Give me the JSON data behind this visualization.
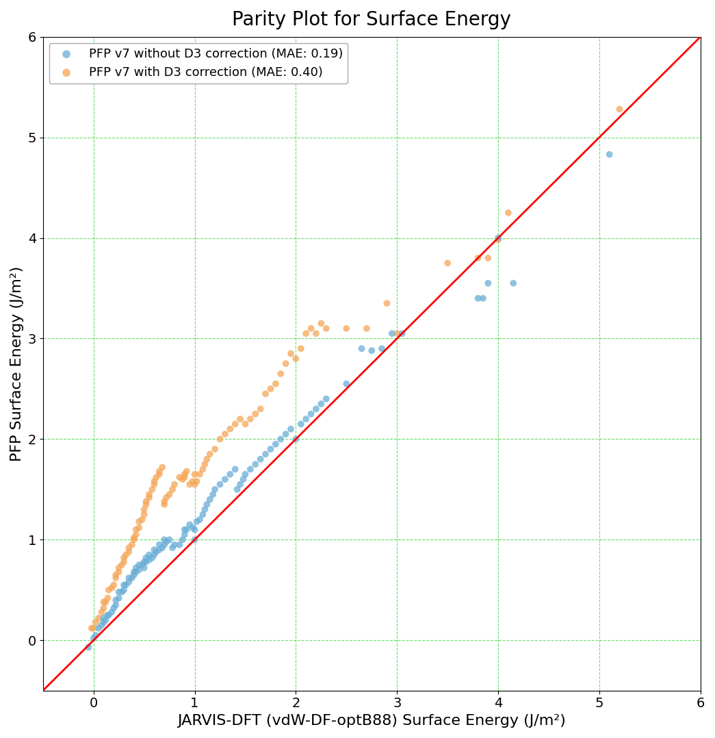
{
  "title": "Parity Plot for Surface Energy",
  "xlabel": "JARVIS-DFT (vdW-DF-optB88) Surface Energy (J/m²)",
  "ylabel": "PFP Surface Energy (J/m²)",
  "xlim": [
    -0.5,
    6.0
  ],
  "ylim": [
    -0.5,
    6.0
  ],
  "legend1_label": "PFP v7 without D3 correction (MAE: 0.19)",
  "legend2_label": "PFP v7 with D3 correction (MAE: 0.40)",
  "color_blue": "#6aaed6",
  "color_orange": "#f5a657",
  "grid_color": "#00cc00",
  "parity_color": "red",
  "marker_size": 50,
  "alpha": 0.75,
  "blue_x": [
    -0.05,
    0.0,
    0.02,
    0.05,
    0.08,
    0.1,
    0.1,
    0.12,
    0.14,
    0.15,
    0.18,
    0.2,
    0.22,
    0.22,
    0.25,
    0.25,
    0.28,
    0.3,
    0.3,
    0.32,
    0.35,
    0.35,
    0.38,
    0.4,
    0.4,
    0.42,
    0.42,
    0.45,
    0.45,
    0.48,
    0.5,
    0.5,
    0.52,
    0.52,
    0.55,
    0.55,
    0.58,
    0.6,
    0.6,
    0.62,
    0.65,
    0.65,
    0.68,
    0.7,
    0.7,
    0.72,
    0.75,
    0.78,
    0.8,
    0.85,
    0.88,
    0.9,
    0.9,
    0.92,
    0.95,
    0.98,
    1.0,
    1.0,
    1.02,
    1.05,
    1.08,
    1.1,
    1.12,
    1.15,
    1.18,
    1.2,
    1.25,
    1.3,
    1.35,
    1.4,
    1.42,
    1.45,
    1.48,
    1.5,
    1.55,
    1.6,
    1.65,
    1.7,
    1.75,
    1.8,
    1.85,
    1.9,
    1.95,
    2.0,
    2.05,
    2.1,
    2.15,
    2.2,
    2.25,
    2.3,
    2.5,
    2.65,
    2.75,
    2.85,
    2.95,
    3.05,
    3.8,
    3.85,
    3.9,
    4.0,
    4.15,
    5.1
  ],
  "blue_y": [
    -0.07,
    0.02,
    0.05,
    0.12,
    0.15,
    0.18,
    0.22,
    0.2,
    0.25,
    0.25,
    0.28,
    0.32,
    0.35,
    0.4,
    0.42,
    0.48,
    0.48,
    0.5,
    0.55,
    0.55,
    0.58,
    0.62,
    0.62,
    0.65,
    0.68,
    0.68,
    0.72,
    0.7,
    0.75,
    0.75,
    0.72,
    0.78,
    0.78,
    0.82,
    0.8,
    0.85,
    0.82,
    0.85,
    0.9,
    0.88,
    0.9,
    0.95,
    0.92,
    0.95,
    1.0,
    0.98,
    1.0,
    0.92,
    0.95,
    0.95,
    1.0,
    1.05,
    1.1,
    1.1,
    1.15,
    1.12,
    1.0,
    1.1,
    1.18,
    1.2,
    1.25,
    1.3,
    1.35,
    1.4,
    1.45,
    1.5,
    1.55,
    1.6,
    1.65,
    1.7,
    1.5,
    1.55,
    1.6,
    1.65,
    1.7,
    1.75,
    1.8,
    1.85,
    1.9,
    1.95,
    2.0,
    2.05,
    2.1,
    2.0,
    2.15,
    2.2,
    2.25,
    2.3,
    2.35,
    2.4,
    2.55,
    2.9,
    2.88,
    2.9,
    3.05,
    3.05,
    3.4,
    3.4,
    3.55,
    4.0,
    3.55,
    4.83
  ],
  "orange_x": [
    -0.02,
    0.0,
    0.02,
    0.05,
    0.08,
    0.1,
    0.1,
    0.12,
    0.14,
    0.15,
    0.18,
    0.2,
    0.22,
    0.22,
    0.25,
    0.25,
    0.28,
    0.3,
    0.3,
    0.32,
    0.35,
    0.35,
    0.38,
    0.4,
    0.4,
    0.42,
    0.42,
    0.45,
    0.45,
    0.48,
    0.5,
    0.5,
    0.52,
    0.52,
    0.55,
    0.55,
    0.58,
    0.6,
    0.6,
    0.62,
    0.65,
    0.65,
    0.68,
    0.7,
    0.7,
    0.72,
    0.75,
    0.78,
    0.8,
    0.85,
    0.88,
    0.9,
    0.9,
    0.92,
    0.95,
    0.98,
    1.0,
    1.0,
    1.02,
    1.05,
    1.08,
    1.1,
    1.12,
    1.15,
    1.2,
    1.25,
    1.3,
    1.35,
    1.4,
    1.45,
    1.5,
    1.55,
    1.6,
    1.65,
    1.7,
    1.75,
    1.8,
    1.85,
    1.9,
    1.95,
    2.0,
    2.05,
    2.1,
    2.15,
    2.2,
    2.25,
    2.3,
    2.5,
    2.7,
    2.9,
    3.0,
    3.5,
    3.8,
    3.9,
    4.0,
    4.1,
    5.2
  ],
  "orange_y": [
    0.12,
    0.12,
    0.18,
    0.22,
    0.28,
    0.32,
    0.38,
    0.38,
    0.42,
    0.5,
    0.52,
    0.55,
    0.62,
    0.65,
    0.68,
    0.72,
    0.75,
    0.78,
    0.82,
    0.85,
    0.88,
    0.92,
    0.95,
    1.0,
    1.02,
    1.05,
    1.1,
    1.12,
    1.18,
    1.2,
    1.25,
    1.3,
    1.35,
    1.38,
    1.42,
    1.45,
    1.5,
    1.55,
    1.58,
    1.62,
    1.65,
    1.68,
    1.72,
    1.35,
    1.38,
    1.42,
    1.45,
    1.5,
    1.55,
    1.62,
    1.6,
    1.62,
    1.65,
    1.68,
    1.55,
    1.58,
    1.65,
    1.55,
    1.58,
    1.65,
    1.7,
    1.75,
    1.8,
    1.85,
    1.9,
    2.0,
    2.05,
    2.1,
    2.15,
    2.2,
    2.15,
    2.2,
    2.25,
    2.3,
    2.45,
    2.5,
    2.55,
    2.65,
    2.75,
    2.85,
    2.8,
    2.9,
    3.05,
    3.1,
    3.05,
    3.15,
    3.1,
    3.1,
    3.1,
    3.35,
    3.05,
    3.75,
    3.8,
    3.8,
    3.98,
    4.25,
    5.28
  ]
}
